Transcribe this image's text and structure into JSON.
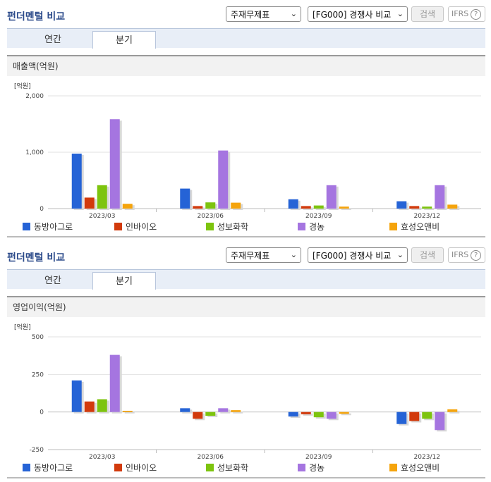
{
  "header": {
    "title": "펀더멘털 비교",
    "select_report": "주재무제표",
    "select_compare": "[FG000] 경쟁사 비교",
    "search_label": "검색",
    "ifrs_label": "IFRS",
    "help_symbol": "?"
  },
  "tabs": [
    {
      "label": "연간",
      "active": false
    },
    {
      "label": "분기",
      "active": true
    }
  ],
  "colors": {
    "동방아그로": "#2563d6",
    "인바이오": "#d23a0c",
    "성보화학": "#7dc40e",
    "경농": "#a575e0",
    "효성오앤비": "#f5a40c"
  },
  "chart_data": [
    {
      "type": "bar",
      "title": "매출액(억원)",
      "unit_label": "[억원]",
      "categories": [
        "2023/03",
        "2023/06",
        "2023/09",
        "2023/12"
      ],
      "ylim": [
        0,
        2000
      ],
      "yticks": [
        0,
        1000,
        2000
      ],
      "ytick_labels": [
        "0",
        "1,000",
        "2,000"
      ],
      "series": [
        {
          "name": "동방아그로",
          "values": [
            975,
            355,
            165,
            130
          ]
        },
        {
          "name": "인바이오",
          "values": [
            195,
            45,
            45,
            45
          ]
        },
        {
          "name": "성보화학",
          "values": [
            415,
            110,
            55,
            35
          ]
        },
        {
          "name": "경농",
          "values": [
            1585,
            1030,
            415,
            415
          ]
        },
        {
          "name": "효성오앤비",
          "values": [
            85,
            105,
            35,
            70
          ]
        }
      ]
    },
    {
      "type": "bar",
      "title": "영업이익(억원)",
      "unit_label": "[억원]",
      "categories": [
        "2023/03",
        "2023/06",
        "2023/09",
        "2023/12"
      ],
      "ylim": [
        -250,
        500
      ],
      "yticks": [
        -250,
        0,
        250,
        500
      ],
      "ytick_labels": [
        "-250",
        "0",
        "250",
        "500"
      ],
      "series": [
        {
          "name": "동방아그로",
          "values": [
            210,
            25,
            -30,
            -80
          ]
        },
        {
          "name": "인바이오",
          "values": [
            70,
            -45,
            -15,
            -60
          ]
        },
        {
          "name": "성보화학",
          "values": [
            85,
            -25,
            -35,
            -45
          ]
        },
        {
          "name": "경농",
          "values": [
            380,
            25,
            -45,
            -120
          ]
        },
        {
          "name": "효성오앤비",
          "values": [
            8,
            12,
            -12,
            18
          ]
        }
      ]
    }
  ]
}
